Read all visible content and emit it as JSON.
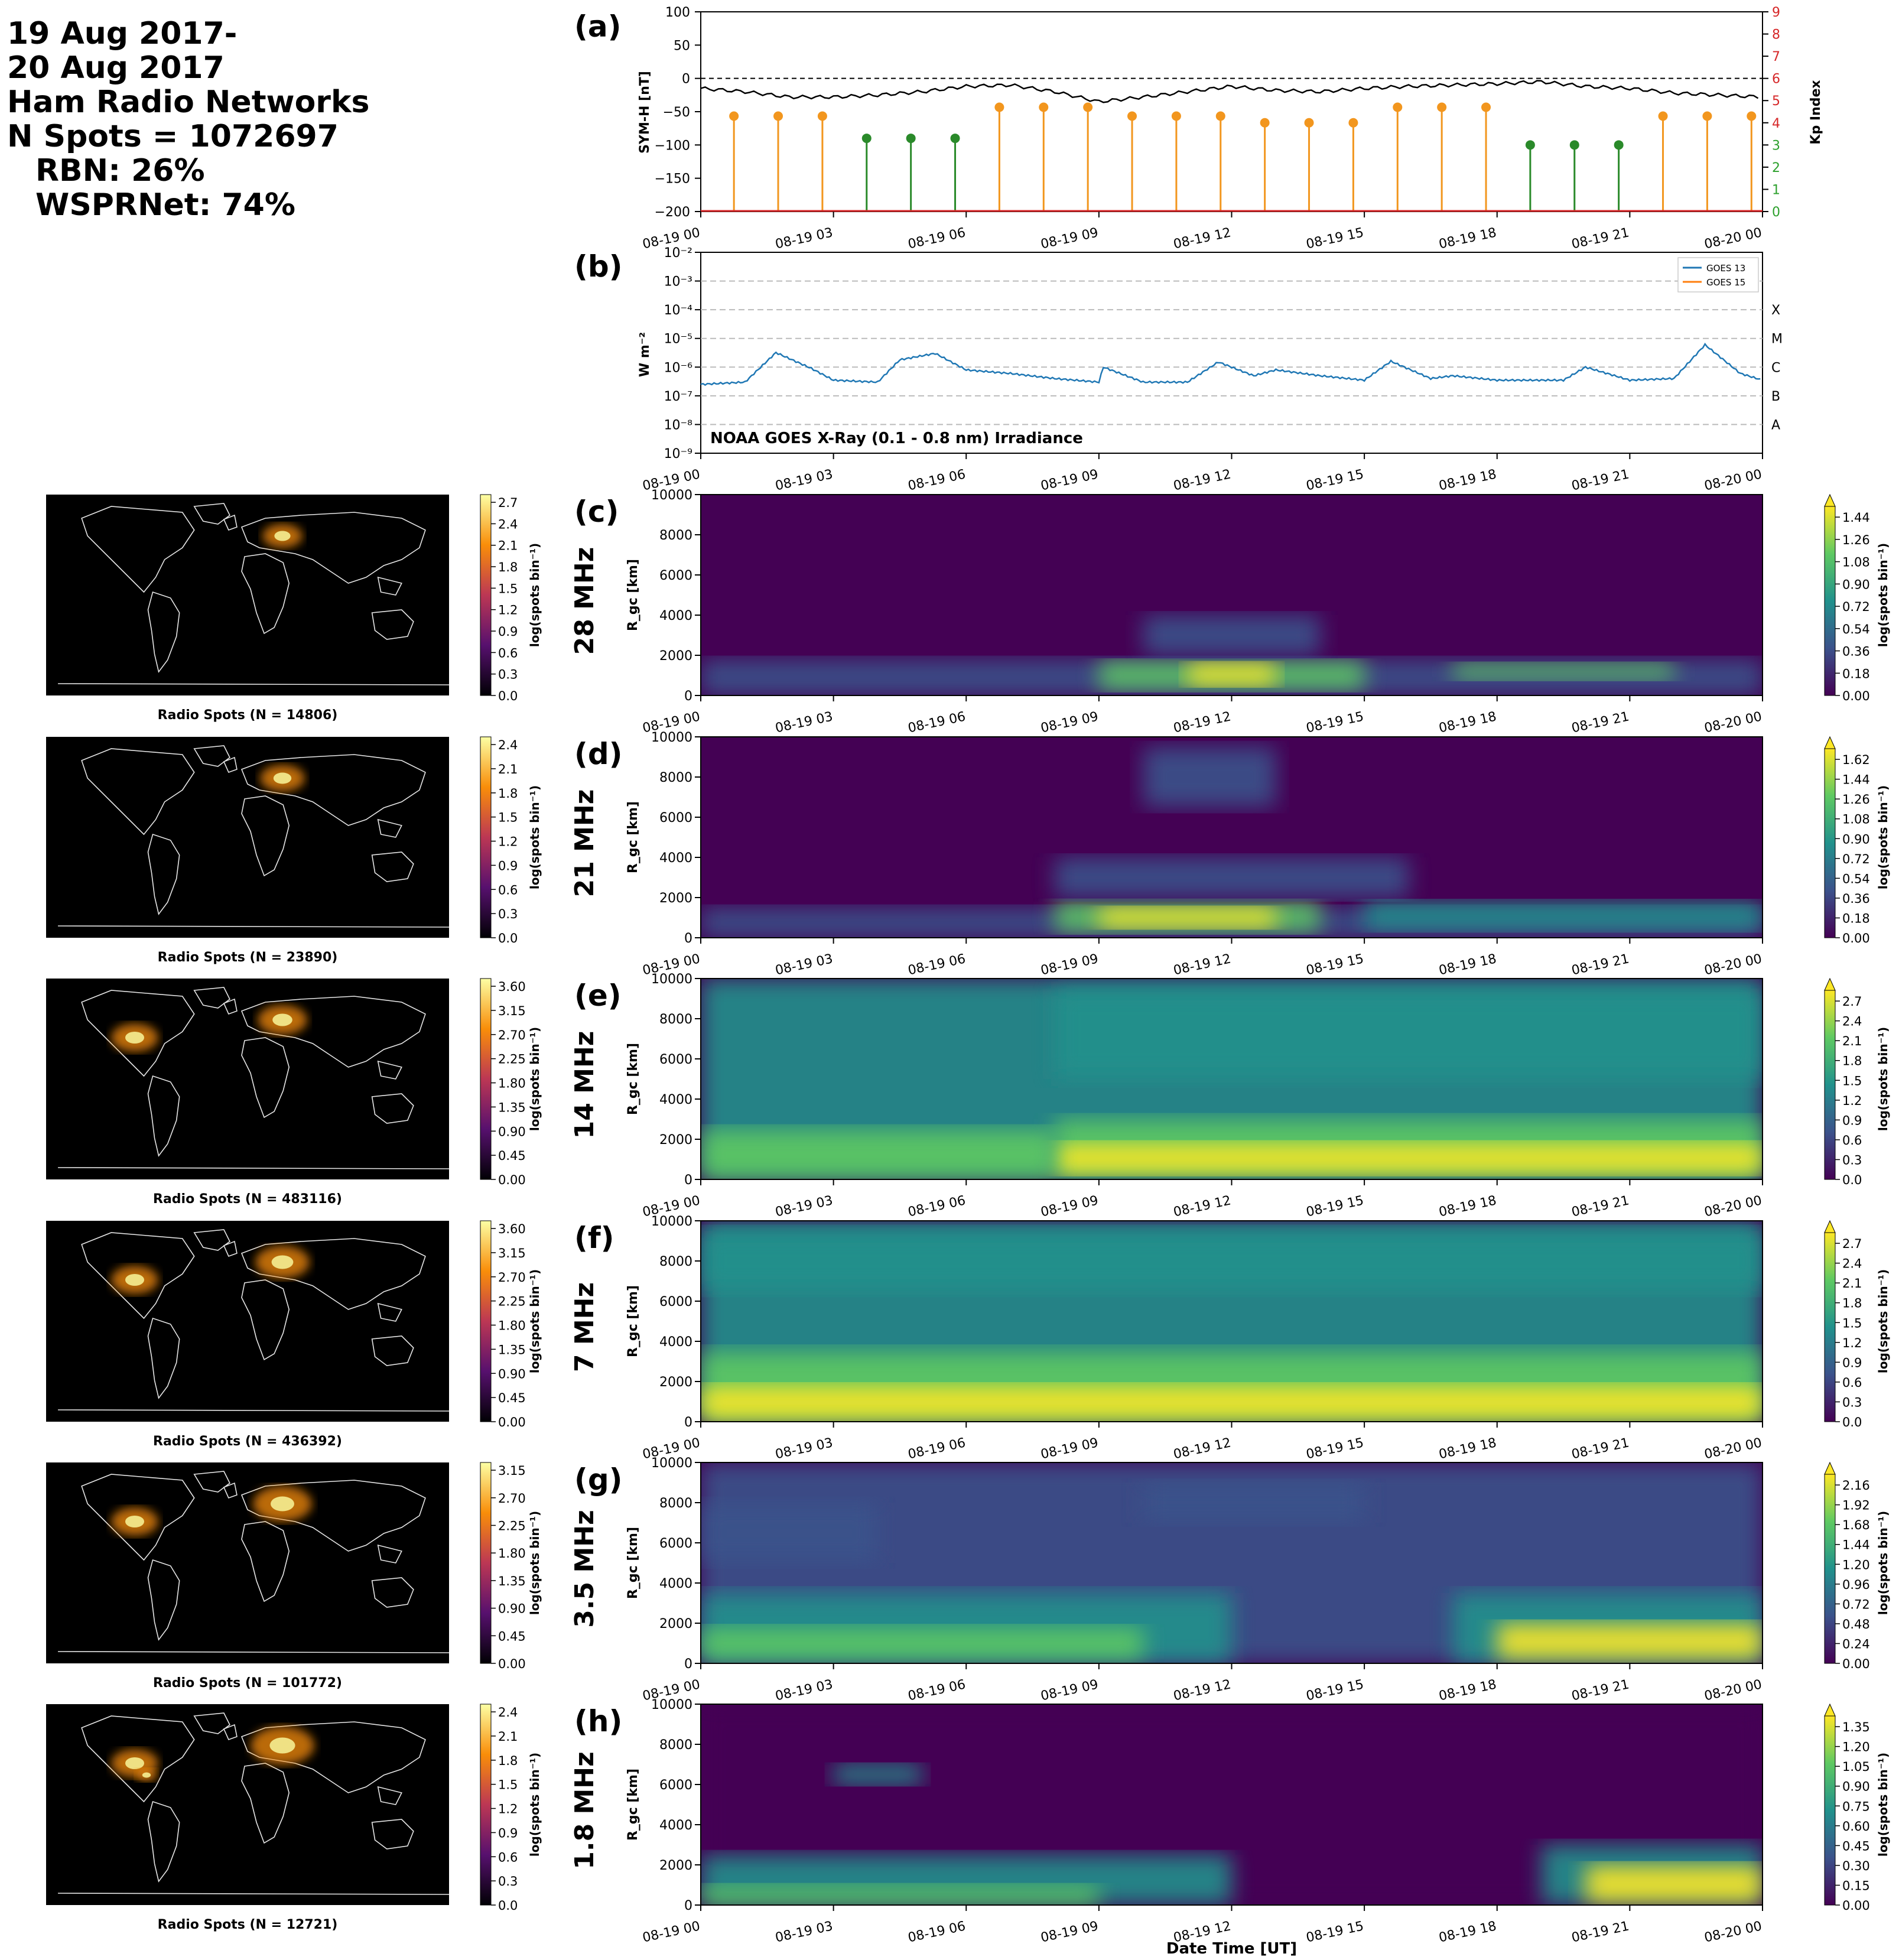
{
  "header": {
    "lines": [
      "19 Aug 2017-",
      "20 Aug 2017",
      "Ham Radio Networks",
      "N Spots = 1072697",
      "RBN: 26%",
      "WSPRNet: 74%"
    ]
  },
  "time_ticks": [
    "08-19 00",
    "08-19 03",
    "08-19 06",
    "08-19 09",
    "08-19 12",
    "08-19 15",
    "08-19 18",
    "08-19 21",
    "08-20 00"
  ],
  "bottom_xlabel": "Date Time [UT]",
  "panel_a": {
    "label": "(a)",
    "ylabel_left": "SYM-H [nT]",
    "ylabel_right": "Kp Index",
    "left_ticks": [
      "100",
      "50",
      "0",
      "−50",
      "−100",
      "−150",
      "−200"
    ],
    "right_ticks": [
      "9",
      "8",
      "7",
      "6",
      "5",
      "4",
      "3",
      "2",
      "1",
      "0"
    ]
  },
  "panel_b": {
    "label": "(b)",
    "ylabel": "W m⁻²",
    "y_ticks": [
      "10⁻²",
      "10⁻³",
      "10⁻⁴",
      "10⁻⁵",
      "10⁻⁶",
      "10⁻⁷",
      "10⁻⁸",
      "10⁻⁹"
    ],
    "class_labels": [
      "X",
      "M",
      "C",
      "B",
      "A"
    ],
    "annotation": "NOAA GOES X-Ray (0.1 - 0.8 nm) Irradiance",
    "legend": [
      "GOES 13",
      "GOES 15"
    ]
  },
  "map_panels": [
    {
      "caption": "Radio Spots (N = 14806)",
      "cbar_ticks": [
        "2.7",
        "2.4",
        "2.1",
        "1.8",
        "1.5",
        "1.2",
        "0.9",
        "0.6",
        "0.3",
        "0.0"
      ]
    },
    {
      "caption": "Radio Spots (N = 23890)",
      "cbar_ticks": [
        "2.4",
        "2.1",
        "1.8",
        "1.5",
        "1.2",
        "0.9",
        "0.6",
        "0.3",
        "0.0"
      ]
    },
    {
      "caption": "Radio Spots (N = 483116)",
      "cbar_ticks": [
        "3.60",
        "3.15",
        "2.70",
        "2.25",
        "1.80",
        "1.35",
        "0.90",
        "0.45",
        "0.00"
      ]
    },
    {
      "caption": "Radio Spots (N = 436392)",
      "cbar_ticks": [
        "3.60",
        "3.15",
        "2.70",
        "2.25",
        "1.80",
        "1.35",
        "0.90",
        "0.45",
        "0.00"
      ]
    },
    {
      "caption": "Radio Spots (N = 101772)",
      "cbar_ticks": [
        "3.15",
        "2.70",
        "2.25",
        "1.80",
        "1.35",
        "0.90",
        "0.45",
        "0.00"
      ]
    },
    {
      "caption": "Radio Spots (N = 12721)",
      "cbar_ticks": [
        "2.4",
        "2.1",
        "1.8",
        "1.5",
        "1.2",
        "0.9",
        "0.6",
        "0.3",
        "0.0"
      ]
    }
  ],
  "map_cbar_label": "log(spots bin⁻¹)",
  "heatmap_panels": [
    {
      "label": "(c)",
      "band": "28 MHz",
      "cbar_ticks": [
        "1.44",
        "1.26",
        "1.08",
        "0.90",
        "0.72",
        "0.54",
        "0.36",
        "0.18",
        "0.00"
      ]
    },
    {
      "label": "(d)",
      "band": "21 MHz",
      "cbar_ticks": [
        "1.62",
        "1.44",
        "1.26",
        "1.08",
        "0.90",
        "0.72",
        "0.54",
        "0.36",
        "0.18",
        "0.00"
      ]
    },
    {
      "label": "(e)",
      "band": "14 MHz",
      "cbar_ticks": [
        "2.7",
        "2.4",
        "2.1",
        "1.8",
        "1.5",
        "1.2",
        "0.9",
        "0.6",
        "0.3",
        "0.0"
      ]
    },
    {
      "label": "(f)",
      "band": "7 MHz",
      "cbar_ticks": [
        "2.7",
        "2.4",
        "2.1",
        "1.8",
        "1.5",
        "1.2",
        "0.9",
        "0.6",
        "0.3",
        "0.0"
      ]
    },
    {
      "label": "(g)",
      "band": "3.5 MHz",
      "cbar_ticks": [
        "2.16",
        "1.92",
        "1.68",
        "1.44",
        "1.20",
        "0.96",
        "0.72",
        "0.48",
        "0.24",
        "0.00"
      ]
    },
    {
      "label": "(h)",
      "band": "1.8 MHz",
      "cbar_ticks": [
        "1.35",
        "1.20",
        "1.05",
        "0.90",
        "0.75",
        "0.60",
        "0.45",
        "0.30",
        "0.15",
        "0.00"
      ]
    }
  ],
  "heatmap_ylabel": "R_gc [km]",
  "heatmap_yticks": [
    "10000",
    "8000",
    "6000",
    "4000",
    "2000",
    "0"
  ],
  "heatmap_cbar_label": "log(spots bin⁻¹)",
  "colors": {
    "kp_low": "#2a8a2a",
    "kp_mid": "#f2961e",
    "symh": "#000000",
    "goes13": "#1f77b4",
    "goes15": "#ff7f0e",
    "right_axis_red": "#d62728",
    "right_axis_green": "#2ca02c"
  },
  "chart_data": [
    {
      "type": "line",
      "title": "",
      "xlabel": "",
      "ylabel": "SYM-H [nT]",
      "x_range": [
        "2017-08-19 00:00",
        "2017-08-20 00:00"
      ],
      "ylim": [
        -200,
        100
      ],
      "x_hours": [
        0,
        1,
        2,
        3,
        4,
        5,
        6,
        7,
        8,
        9,
        10,
        11,
        12,
        13,
        14,
        15,
        16,
        17,
        18,
        19,
        20,
        21,
        22,
        23,
        24
      ],
      "series": [
        {
          "values": [
            -15,
            -20,
            -28,
            -28,
            -25,
            -20,
            -12,
            -10,
            -20,
            -35,
            -28,
            -20,
            -12,
            -18,
            -20,
            -15,
            -12,
            -10,
            -8,
            -5,
            -12,
            -15,
            -22,
            -25,
            -28
          ]
        }
      ],
      "reference_line": 0
    },
    {
      "type": "bar",
      "title": "",
      "ylabel": "Kp Index",
      "ylim": [
        0,
        9
      ],
      "x_hours": [
        0,
        1,
        2,
        3,
        4,
        5,
        6,
        7,
        8,
        9,
        10,
        11,
        12,
        13,
        14,
        15,
        16,
        17,
        18,
        19,
        20,
        21,
        22,
        23
      ],
      "values": [
        4.3,
        4.3,
        4.3,
        3.3,
        3.3,
        3.3,
        4.7,
        4.7,
        4.7,
        4.3,
        4.3,
        4.3,
        4,
        4,
        4,
        4.7,
        4.7,
        4.7,
        3,
        3,
        3,
        4.3,
        4.3,
        4.3
      ]
    },
    {
      "type": "line",
      "title": "",
      "annotation": "NOAA GOES X-Ray (0.1 - 0.8 nm) Irradiance",
      "ylabel": "W m⁻²",
      "yscale": "log",
      "ylim": [
        1e-09,
        0.01
      ],
      "x_hours": [
        0,
        1,
        1.7,
        2.5,
        3,
        4,
        4.5,
        5.3,
        6,
        7,
        8,
        9,
        9.1,
        10,
        11,
        11.7,
        12.5,
        13,
        14,
        15,
        15.6,
        16.5,
        17,
        18,
        19.5,
        20,
        21,
        22,
        22.7,
        23.5,
        24
      ],
      "series": [
        {
          "name": "GOES 13",
          "values": [
            2.5e-07,
            3e-07,
            3.2e-06,
            9e-07,
            3.5e-07,
            3e-07,
            1.8e-06,
            3e-06,
            8e-07,
            6e-07,
            4e-07,
            3e-07,
            1e-06,
            3e-07,
            3e-07,
            1.5e-06,
            5e-07,
            8e-07,
            5e-07,
            3.5e-07,
            1.6e-06,
            4e-07,
            5e-07,
            3.5e-07,
            3.5e-07,
            1e-06,
            3.5e-07,
            4e-07,
            6e-06,
            6e-07,
            3.5e-07
          ]
        },
        {
          "name": "GOES 15",
          "values": []
        }
      ]
    },
    {
      "type": "heatmap",
      "title": "28 MHz",
      "xlabel": "",
      "ylabel": "R_gc [km]",
      "ylim": [
        0,
        10000
      ],
      "clim": [
        0,
        1.44
      ]
    },
    {
      "type": "heatmap",
      "title": "21 MHz",
      "xlabel": "",
      "ylabel": "R_gc [km]",
      "ylim": [
        0,
        10000
      ],
      "clim": [
        0,
        1.62
      ]
    },
    {
      "type": "heatmap",
      "title": "14 MHz",
      "xlabel": "",
      "ylabel": "R_gc [km]",
      "ylim": [
        0,
        10000
      ],
      "clim": [
        0,
        2.7
      ]
    },
    {
      "type": "heatmap",
      "title": "7 MHz",
      "xlabel": "",
      "ylabel": "R_gc [km]",
      "ylim": [
        0,
        10000
      ],
      "clim": [
        0,
        2.7
      ]
    },
    {
      "type": "heatmap",
      "title": "3.5 MHz",
      "xlabel": "",
      "ylabel": "R_gc [km]",
      "ylim": [
        0,
        10000
      ],
      "clim": [
        0,
        2.16
      ]
    },
    {
      "type": "heatmap",
      "title": "1.8 MHz",
      "xlabel": "Date Time [UT]",
      "ylabel": "R_gc [km]",
      "ylim": [
        0,
        10000
      ],
      "clim": [
        0,
        1.35
      ]
    }
  ]
}
